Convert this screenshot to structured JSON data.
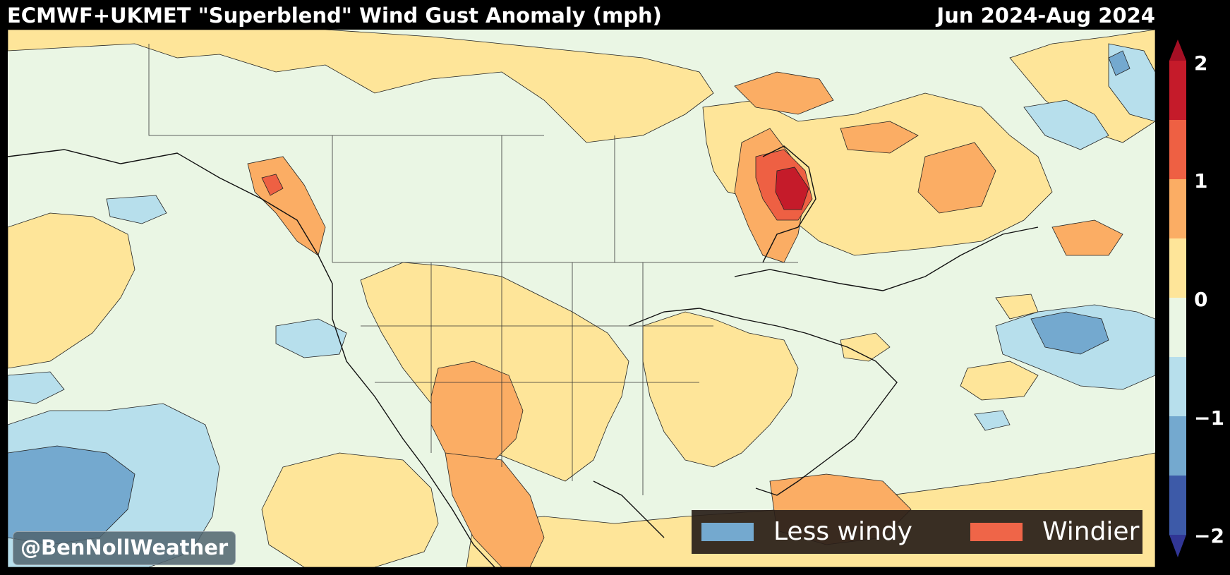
{
  "header": {
    "title": "ECMWF+UKMET \"Superblend\" Wind Gust Anomaly (mph)",
    "period": "Jun 2024-Aug 2024"
  },
  "watermark": "@BenNollWeather",
  "legend": {
    "less_windy": {
      "label": "Less windy",
      "color": "#74a9cf"
    },
    "windier": {
      "label": "Windier",
      "color": "#ef6548"
    }
  },
  "colorbar": {
    "levels": [
      2,
      1,
      0,
      -1,
      -2
    ],
    "tick_labels": [
      "2",
      "1",
      "0",
      "−1",
      "−2"
    ],
    "colors_top_to_bottom": [
      "#c51b2a",
      "#ee6043",
      "#fbad64",
      "#fee599",
      "#eaf6e4",
      "#b7dfec",
      "#74a9cf",
      "#3d5aa8"
    ],
    "extend": "both"
  },
  "map": {
    "region": "North America",
    "anomaly_colors": {
      "strong_windier": "#c51b2a",
      "windier": "#ee6043",
      "moderate_windier": "#fbad64",
      "slight_windier": "#fee599",
      "near_normal": "#eaf6e4",
      "slight_less": "#b7dfec",
      "less": "#74a9cf"
    }
  }
}
